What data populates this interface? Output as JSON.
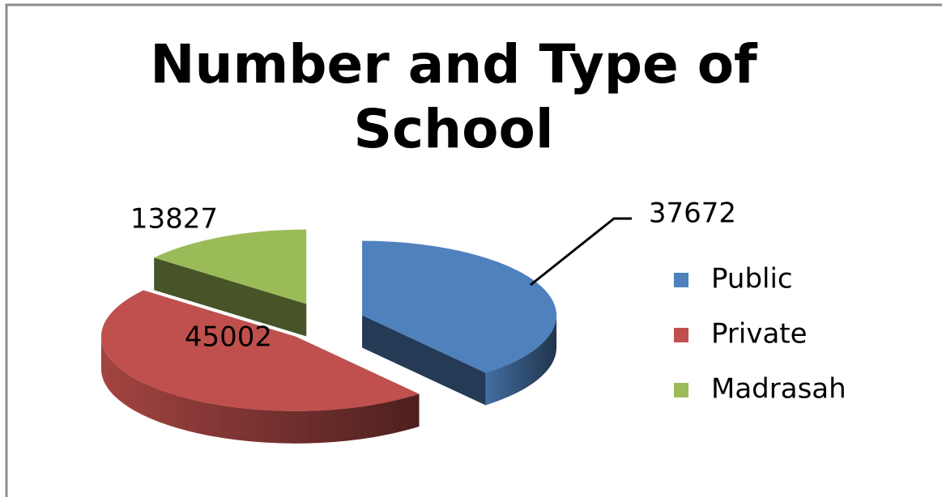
{
  "chart_data": {
    "type": "pie",
    "title": "Number and Type of School",
    "categories": [
      "Public",
      "Private",
      "Madrasah"
    ],
    "values": [
      37672,
      45002,
      13827
    ],
    "colors": [
      "#4f81bd",
      "#c0504d",
      "#9bbb59"
    ],
    "legend": "right"
  }
}
